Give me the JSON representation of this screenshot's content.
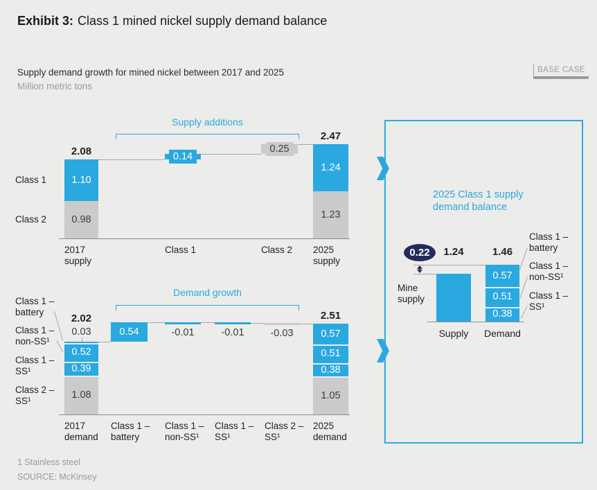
{
  "header": {
    "exhibit_label": "Exhibit 3:",
    "title": "Class 1 mined nickel supply demand balance",
    "subtitle": "Supply demand growth for mined nickel between 2017 and 2025",
    "unit": "Million metric tons",
    "badge": "BASE CASE"
  },
  "footer": {
    "footnote": "1 Stainless steel",
    "source": "SOURCE: McKinsey"
  },
  "colors": {
    "blue": "#2AA8E0",
    "gray_bar": "#CBCBCB",
    "navy": "#232A5E",
    "background": "#ECECEA",
    "text_dark": "#212121",
    "text_on_gray": "#3C3C3C",
    "text_gray": "#9b9b9b",
    "line_gray": "#A6A6A6",
    "axis_line": "#8C8C8C"
  },
  "chart_data": [
    {
      "id": "supply_waterfall",
      "type": "bar",
      "subtype": "waterfall",
      "bracket_label": "Supply additions",
      "row_labels": [
        "Class 1",
        "Class 2"
      ],
      "columns": [
        {
          "label": "2017 supply",
          "kind": "stack",
          "total_label": "2.08",
          "segments": [
            {
              "name": "Class 1",
              "value": 1.1,
              "label": "1.10",
              "color": "blue"
            },
            {
              "name": "Class 2",
              "value": 0.98,
              "label": "0.98",
              "color": "gray"
            }
          ]
        },
        {
          "label": "Class 1",
          "kind": "delta",
          "value": 0.14,
          "label_text": "0.14",
          "color": "blue"
        },
        {
          "label": "Class 2",
          "kind": "delta",
          "value": 0.25,
          "label_text": "0.25",
          "color": "gray"
        },
        {
          "label": "2025 supply",
          "kind": "stack",
          "total_label": "2.47",
          "segments": [
            {
              "name": "Class 1",
              "value": 1.24,
              "label": "1.24",
              "color": "blue"
            },
            {
              "name": "Class 2",
              "value": 1.23,
              "label": "1.23",
              "color": "gray"
            }
          ]
        }
      ]
    },
    {
      "id": "demand_waterfall",
      "type": "bar",
      "subtype": "waterfall",
      "bracket_label": "Demand growth",
      "row_labels": [
        "Class 1 – battery",
        "Class 1 – non-SS¹",
        "Class 1 – SS¹",
        "Class 2 – SS¹"
      ],
      "columns": [
        {
          "label": "2017 demand",
          "kind": "stack",
          "total_label": "2.02",
          "segments": [
            {
              "name": "Class 1 – battery",
              "value": 0.03,
              "label": "0.03",
              "color": "blue",
              "label_outside": true
            },
            {
              "name": "Class 1 – non-SS¹",
              "value": 0.52,
              "label": "0.52",
              "color": "blue"
            },
            {
              "name": "Class 1 – SS¹",
              "value": 0.39,
              "label": "0.39",
              "color": "blue"
            },
            {
              "name": "Class 2 – SS¹",
              "value": 1.08,
              "label": "1.08",
              "color": "gray"
            }
          ]
        },
        {
          "label": "Class 1 – battery",
          "kind": "delta",
          "value": 0.54,
          "label_text": "0.54",
          "color": "blue"
        },
        {
          "label": "Class 1 – non-SS¹",
          "kind": "delta",
          "value": -0.01,
          "label_text": "-0.01",
          "color": "blue"
        },
        {
          "label": "Class 1 – SS¹",
          "kind": "delta",
          "value": -0.01,
          "label_text": "-0.01",
          "color": "blue"
        },
        {
          "label": "Class 2 – SS¹",
          "kind": "delta",
          "value": -0.03,
          "label_text": "-0.03",
          "color": "gray"
        },
        {
          "label": "2025 demand",
          "kind": "stack",
          "total_label": "2.51",
          "segments": [
            {
              "name": "Class 1 – battery",
              "value": 0.57,
              "label": "0.57",
              "color": "blue"
            },
            {
              "name": "Class 1 – non-SS¹",
              "value": 0.51,
              "label": "0.51",
              "color": "blue"
            },
            {
              "name": "Class 1 – SS¹",
              "value": 0.38,
              "label": "0.38",
              "color": "blue"
            },
            {
              "name": "Class 2 – SS¹",
              "value": 1.05,
              "label": "1.05",
              "color": "gray"
            }
          ]
        }
      ]
    },
    {
      "id": "balance",
      "type": "bar",
      "subtype": "supply-demand-balance",
      "title": "2025 Class 1 supply demand balance",
      "gap_badge": "0.22",
      "supply": {
        "x_label": "Supply",
        "value": 1.24,
        "total_label": "1.24",
        "annotation": "Mine supply"
      },
      "demand": {
        "x_label": "Demand",
        "total": 1.46,
        "total_label": "1.46",
        "segments": [
          {
            "name": "Class 1 – battery",
            "value": 0.57,
            "label": "0.57"
          },
          {
            "name": "Class 1 – non-SS¹",
            "value": 0.51,
            "label": "0.51"
          },
          {
            "name": "Class 1 – SS¹",
            "value": 0.38,
            "label": "0.38"
          }
        ]
      }
    }
  ]
}
